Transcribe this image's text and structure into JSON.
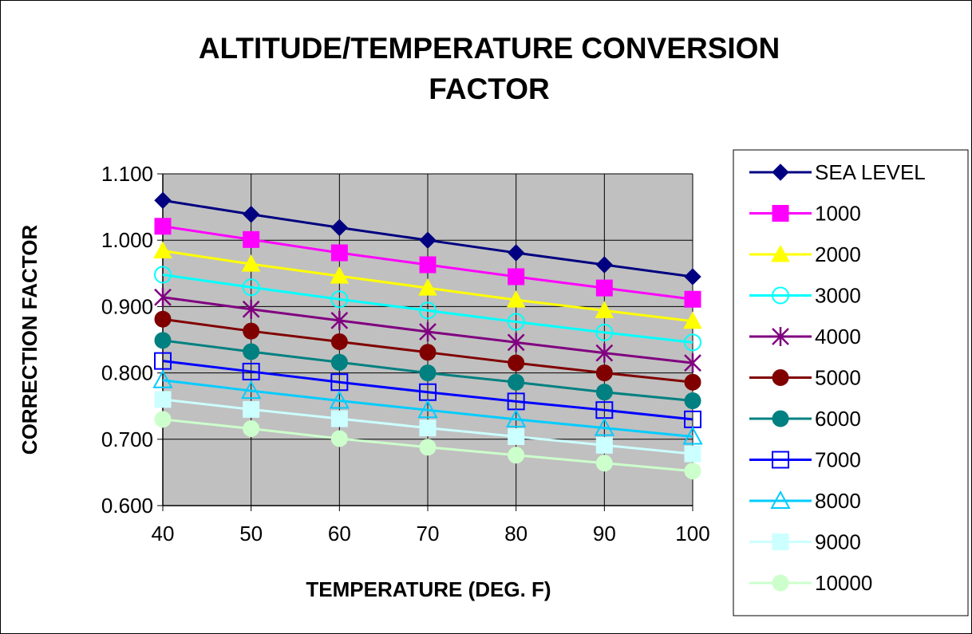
{
  "chart_data": {
    "type": "line",
    "title_lines": [
      "ALTITUDE/TEMPERATURE CONVERSION",
      "FACTOR"
    ],
    "xlabel": "TEMPERATURE (DEG. F)",
    "ylabel": "CORRECTION FACTOR",
    "x": [
      40,
      50,
      60,
      70,
      80,
      90,
      100
    ],
    "x_ticks": [
      "40",
      "50",
      "60",
      "70",
      "80",
      "90",
      "100"
    ],
    "y_ticks": [
      "0.600",
      "0.700",
      "0.800",
      "0.900",
      "1.000",
      "1.100"
    ],
    "ylim": [
      0.6,
      1.1
    ],
    "grid": "vertical and horizontal",
    "plot_background": "#c0c0c0",
    "legend_position": "right",
    "series": [
      {
        "name": "SEA LEVEL",
        "color": "#000080",
        "marker": "diamond",
        "values": [
          1.06,
          1.039,
          1.019,
          1.0,
          0.981,
          0.963,
          0.945
        ]
      },
      {
        "name": "1000",
        "color": "#ff00ff",
        "marker": "square-filled",
        "values": [
          1.021,
          1.001,
          0.981,
          0.963,
          0.945,
          0.928,
          0.911
        ]
      },
      {
        "name": "2000",
        "color": "#ffff00",
        "marker": "triangle-filled",
        "values": [
          0.984,
          0.964,
          0.946,
          0.928,
          0.91,
          0.894,
          0.878
        ]
      },
      {
        "name": "3000",
        "color": "#00ffff",
        "marker": "circle-open",
        "values": [
          0.948,
          0.929,
          0.911,
          0.894,
          0.877,
          0.861,
          0.846
        ]
      },
      {
        "name": "4000",
        "color": "#800080",
        "marker": "star",
        "values": [
          0.914,
          0.896,
          0.879,
          0.862,
          0.846,
          0.83,
          0.815
        ]
      },
      {
        "name": "5000",
        "color": "#800000",
        "marker": "circle-filled",
        "values": [
          0.881,
          0.863,
          0.847,
          0.831,
          0.815,
          0.8,
          0.786
        ]
      },
      {
        "name": "6000",
        "color": "#008080",
        "marker": "circle-filled",
        "values": [
          0.849,
          0.832,
          0.816,
          0.8,
          0.786,
          0.771,
          0.758
        ]
      },
      {
        "name": "7000",
        "color": "#0000ff",
        "marker": "square-open",
        "values": [
          0.818,
          0.802,
          0.786,
          0.771,
          0.757,
          0.744,
          0.73
        ]
      },
      {
        "name": "8000",
        "color": "#00ccff",
        "marker": "triangle-open",
        "values": [
          0.789,
          0.773,
          0.758,
          0.744,
          0.73,
          0.717,
          0.704
        ]
      },
      {
        "name": "9000",
        "color": "#ccffff",
        "marker": "square-filled",
        "values": [
          0.76,
          0.745,
          0.731,
          0.717,
          0.704,
          0.691,
          0.678
        ]
      },
      {
        "name": "10000",
        "color": "#ccffcc",
        "marker": "circle-filled",
        "values": [
          0.73,
          0.716,
          0.701,
          0.688,
          0.676,
          0.664,
          0.652
        ]
      }
    ]
  }
}
